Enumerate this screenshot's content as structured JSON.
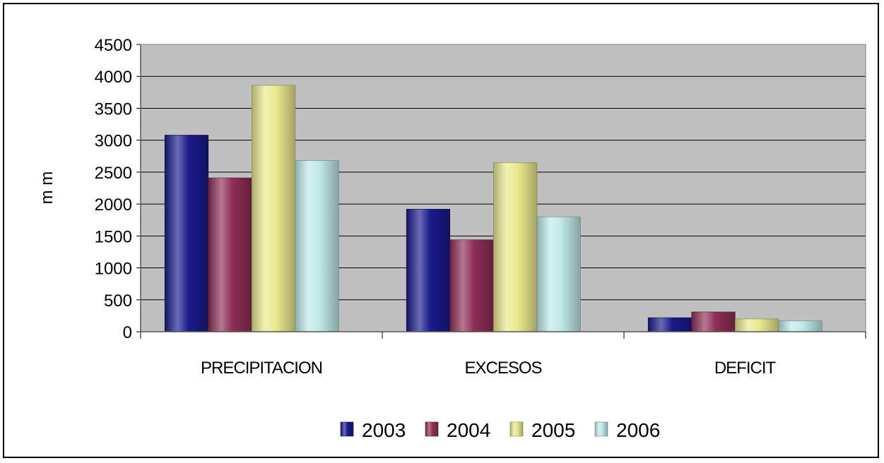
{
  "chart_data": {
    "type": "bar",
    "ylabel": "m m",
    "categories": [
      "PRECIPITACION",
      "EXCESOS",
      "DEFICIT"
    ],
    "series": [
      {
        "name": "2003",
        "color": "#1a1a8c",
        "values": [
          3080,
          1920,
          220
        ]
      },
      {
        "name": "2004",
        "color": "#8e2f55",
        "values": [
          2410,
          1440,
          310
        ]
      },
      {
        "name": "2005",
        "color": "#e9e98d",
        "values": [
          3860,
          2650,
          200
        ]
      },
      {
        "name": "2006",
        "color": "#bfe9e9",
        "values": [
          2680,
          1800,
          170
        ]
      }
    ],
    "ylim": [
      0,
      4500
    ],
    "yticks": [
      "0",
      "500",
      "1000",
      "1500",
      "2000",
      "2500",
      "3000",
      "3500",
      "4000",
      "4500"
    ],
    "grid": true,
    "legend_position": "bottom",
    "plot_background": "#c0c0c0"
  }
}
